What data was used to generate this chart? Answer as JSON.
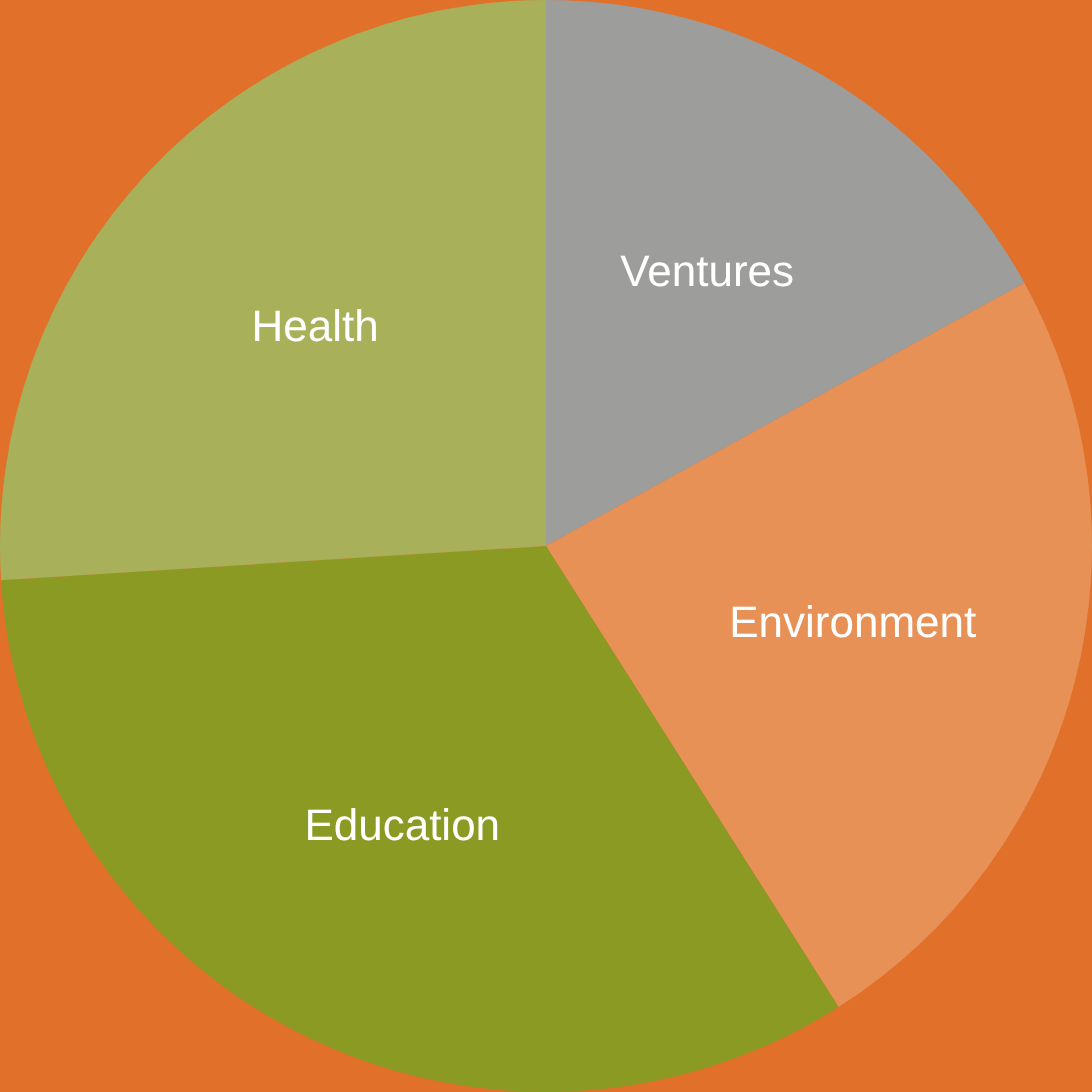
{
  "chart_data": {
    "type": "pie",
    "categories": [
      "Ventures",
      "Environment",
      "Education",
      "Health"
    ],
    "values": [
      17,
      24,
      33,
      26
    ],
    "colors": [
      "#9d9d9c",
      "#e89157",
      "#8b9a23",
      "#a8b05a"
    ],
    "legend": false
  }
}
